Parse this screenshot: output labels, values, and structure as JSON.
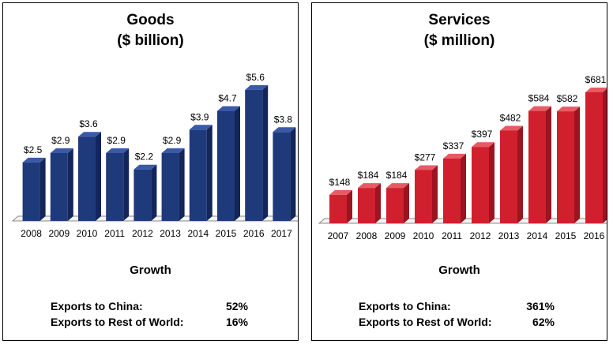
{
  "chart_data": [
    {
      "type": "bar",
      "title": "Goods",
      "subtitle": "($ billion)",
      "categories": [
        "2008",
        "2009",
        "2010",
        "2011",
        "2012",
        "2013",
        "2014",
        "2015",
        "2016",
        "2017"
      ],
      "values": [
        2.5,
        2.9,
        3.6,
        2.9,
        2.2,
        2.9,
        3.9,
        4.7,
        5.6,
        3.8
      ],
      "data_labels": [
        "$2.5",
        "$2.9",
        "$3.6",
        "$2.9",
        "$2.2",
        "$2.9",
        "$3.9",
        "$4.7",
        "$5.6",
        "$3.8"
      ],
      "ylim": [
        0,
        6.0
      ],
      "color": "#1f3a7a",
      "color_side": "#13265a",
      "color_top": "#3a5aa8",
      "grid": false,
      "growth_title": "Growth",
      "growth": [
        {
          "label": "Exports to China:",
          "value": "52%"
        },
        {
          "label": "Exports to Rest of World:",
          "value": "16%"
        }
      ]
    },
    {
      "type": "bar",
      "title": "Services",
      "subtitle": "($ million)",
      "categories": [
        "2007",
        "2008",
        "2009",
        "2010",
        "2011",
        "2012",
        "2013",
        "2014",
        "2015",
        "2016"
      ],
      "values": [
        148,
        184,
        184,
        277,
        337,
        397,
        482,
        584,
        582,
        681
      ],
      "data_labels": [
        "$148",
        "$184",
        "$184",
        "$277",
        "$337",
        "$397",
        "$482",
        "$584",
        "$582",
        "$681"
      ],
      "ylim": [
        0,
        730
      ],
      "color": "#d0202e",
      "color_side": "#9a1520",
      "color_top": "#e85a63",
      "grid": false,
      "growth_title": "Growth",
      "growth": [
        {
          "label": "Exports to China:",
          "value": "361%"
        },
        {
          "label": "Exports to Rest of World:",
          "value": "62%"
        }
      ]
    }
  ]
}
